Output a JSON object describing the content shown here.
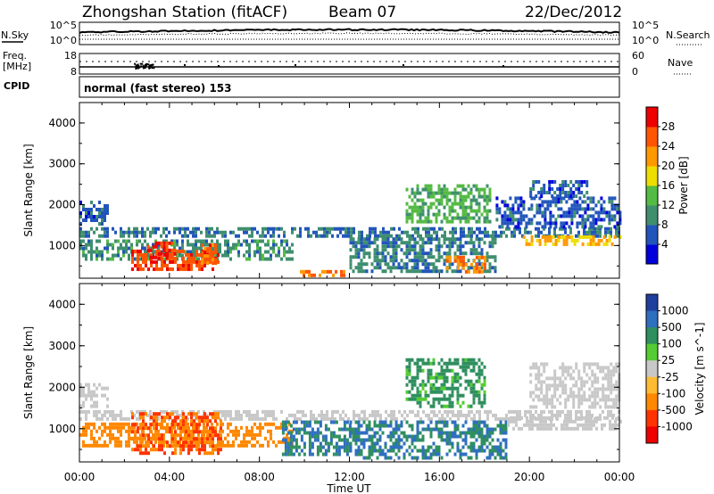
{
  "header": {
    "title": "Zhongshan Station (fitACF)",
    "beam": "Beam 07",
    "date": "22/Dec/2012"
  },
  "top_panels": {
    "nsky": {
      "left_label": "N.Sky",
      "right_label": "N.Search",
      "left_ticks": [
        "10^5",
        "10^0"
      ],
      "right_ticks": [
        "10^5",
        "10^0"
      ]
    },
    "freq": {
      "left_label_1": "Freq.",
      "left_label_2": "[MHz]",
      "left_ticks": [
        "18",
        "8"
      ],
      "right_label": "Nave",
      "right_ticks": [
        "60",
        "0"
      ]
    },
    "cpid": {
      "label": "CPID",
      "text": "normal (fast stereo) 153"
    }
  },
  "chart_data": [
    {
      "type": "heatmap",
      "title": "",
      "parameter": "Power",
      "ylabel": "Slant Range [km]",
      "xlabel": "",
      "yticks": [
        "1000",
        "2000",
        "3000",
        "4000"
      ],
      "ylim": [
        200,
        4500
      ],
      "xlim_hours": [
        0,
        24
      ],
      "colorbar": {
        "label": "Power [dB]",
        "ticks": [
          "4",
          "8",
          "12",
          "16",
          "20",
          "24",
          "28"
        ],
        "range": [
          0,
          30
        ],
        "colors": [
          "#0000dd",
          "#2255bb",
          "#3f8f6f",
          "#55bb44",
          "#eedd00",
          "#ff9900",
          "#ff5500",
          "#ee0000"
        ]
      },
      "regions": [
        {
          "t0": 0.0,
          "t1": 24.0,
          "r0": 1250,
          "r1": 1450,
          "value": 8
        },
        {
          "t0": 0.0,
          "t1": 9.5,
          "r0": 700,
          "r1": 1150,
          "value": 10
        },
        {
          "t0": 0.0,
          "t1": 1.3,
          "r0": 1500,
          "r1": 2100,
          "value": 6
        },
        {
          "t0": 2.3,
          "t1": 6.2,
          "r0": 400,
          "r1": 900,
          "value": 27
        },
        {
          "t0": 3.0,
          "t1": 4.3,
          "r0": 700,
          "r1": 1100,
          "value": 28
        },
        {
          "t0": 5.4,
          "t1": 6.0,
          "r0": 550,
          "r1": 1050,
          "value": 26
        },
        {
          "t0": 9.8,
          "t1": 11.8,
          "r0": 250,
          "r1": 400,
          "value": 25
        },
        {
          "t0": 12.0,
          "t1": 18.5,
          "r0": 400,
          "r1": 1200,
          "value": 9
        },
        {
          "t0": 14.5,
          "t1": 18.2,
          "r0": 1600,
          "r1": 2500,
          "value": 13
        },
        {
          "t0": 16.3,
          "t1": 18.0,
          "r0": 350,
          "r1": 750,
          "value": 24
        },
        {
          "t0": 19.7,
          "t1": 24.0,
          "r0": 1000,
          "r1": 1250,
          "value": 20
        },
        {
          "t0": 18.5,
          "t1": 24.0,
          "r0": 1500,
          "r1": 2200,
          "value": 6
        },
        {
          "t0": 20.0,
          "t1": 22.5,
          "r0": 2200,
          "r1": 2600,
          "value": 6
        }
      ]
    },
    {
      "type": "heatmap",
      "title": "",
      "parameter": "Velocity",
      "ylabel": "Slant Range [km]",
      "xlabel": "Time UT",
      "xticks": [
        "00:00",
        "04:00",
        "08:00",
        "12:00",
        "16:00",
        "20:00",
        "00:00"
      ],
      "yticks": [
        "1000",
        "2000",
        "3000",
        "4000"
      ],
      "ylim": [
        200,
        4500
      ],
      "xlim_hours": [
        0,
        24
      ],
      "colorbar": {
        "label": "Velocity [m s^-1]",
        "ticks": [
          "1000",
          "500",
          "100",
          "25",
          "-25",
          "-100",
          "-500",
          "-1000"
        ],
        "colors": [
          "#1f3f9f",
          "#2f6fbf",
          "#2f8f5f",
          "#55cc33",
          "#c8c8c8",
          "#ffbb33",
          "#ff8800",
          "#ff3300",
          "#ee0000"
        ]
      },
      "regions": [
        {
          "t0": 0.0,
          "t1": 24.0,
          "r0": 1250,
          "r1": 1450,
          "value": 0
        },
        {
          "t0": 0.0,
          "t1": 1.3,
          "r0": 1500,
          "r1": 2100,
          "value": 0
        },
        {
          "t0": 0.0,
          "t1": 9.5,
          "r0": 600,
          "r1": 1150,
          "value": -150
        },
        {
          "t0": 2.3,
          "t1": 6.3,
          "r0": 400,
          "r1": 1400,
          "value": -300
        },
        {
          "t0": 9.0,
          "t1": 12.0,
          "r0": 400,
          "r1": 1200,
          "value": 300
        },
        {
          "t0": 12.0,
          "t1": 19.0,
          "r0": 300,
          "r1": 1200,
          "value": 300
        },
        {
          "t0": 14.5,
          "t1": 18.0,
          "r0": 1500,
          "r1": 2700,
          "value": 80
        },
        {
          "t0": 19.0,
          "t1": 24.0,
          "r0": 1000,
          "r1": 1300,
          "value": 0
        },
        {
          "t0": 20.0,
          "t1": 24.0,
          "r0": 1500,
          "r1": 2600,
          "value": 0
        }
      ]
    }
  ]
}
